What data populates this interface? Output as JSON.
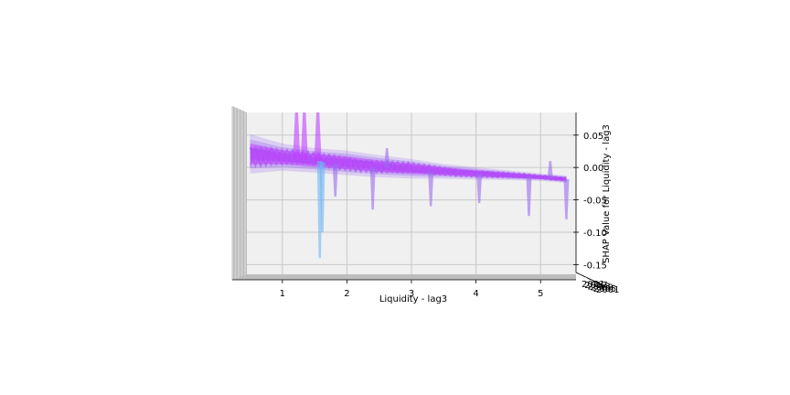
{
  "chart_data": {
    "type": "surface-3d",
    "xlabel": "Liquidity - lag3",
    "zlabel": "SHAP Value for Liquidity - lag3",
    "x_ticks": [
      "1",
      "2",
      "3",
      "4",
      "5"
    ],
    "z_ticks": [
      "0.05",
      "0.00",
      "-0.05",
      "-0.10",
      "-0.15"
    ],
    "y_tick_cluster": [
      "2021",
      "2017",
      "2013",
      "2009",
      "2005",
      "2001"
    ],
    "xlim": [
      0.45,
      5.55
    ],
    "zlim": [
      -0.165,
      0.085
    ],
    "grid": true,
    "trend": [
      {
        "x": 0.5,
        "y": 0.021
      },
      {
        "x": 1.0,
        "y": 0.016
      },
      {
        "x": 1.5,
        "y": 0.011
      },
      {
        "x": 2.0,
        "y": 0.007
      },
      {
        "x": 2.5,
        "y": 0.002
      },
      {
        "x": 3.0,
        "y": -0.002
      },
      {
        "x": 3.5,
        "y": -0.006
      },
      {
        "x": 4.0,
        "y": -0.009
      },
      {
        "x": 4.5,
        "y": -0.012
      },
      {
        "x": 5.0,
        "y": -0.015
      },
      {
        "x": 5.4,
        "y": -0.018
      }
    ],
    "band_half_width": [
      0.016,
      0.011,
      0.01,
      0.01,
      0.009,
      0.008,
      0.006,
      0.005,
      0.004,
      0.003,
      0.003
    ],
    "spikes": [
      {
        "x": 1.22,
        "y_low": 0.015,
        "y_high": 0.085
      },
      {
        "x": 1.34,
        "y_low": 0.012,
        "y_high": 0.085
      },
      {
        "x": 1.55,
        "y_low": 0.01,
        "y_high": 0.085
      },
      {
        "x": 1.58,
        "y_low": 0.01,
        "y_high": -0.14
      },
      {
        "x": 1.62,
        "y_low": 0.008,
        "y_high": -0.1
      },
      {
        "x": 1.82,
        "y_low": 0.006,
        "y_high": -0.045
      },
      {
        "x": 2.4,
        "y_low": 0.0,
        "y_high": -0.065
      },
      {
        "x": 2.62,
        "y_low": 0.0,
        "y_high": 0.03
      },
      {
        "x": 3.3,
        "y_low": -0.006,
        "y_high": -0.06
      },
      {
        "x": 4.05,
        "y_low": -0.01,
        "y_high": -0.055
      },
      {
        "x": 4.82,
        "y_low": -0.014,
        "y_high": -0.075
      },
      {
        "x": 5.15,
        "y_low": -0.016,
        "y_high": 0.01
      },
      {
        "x": 5.4,
        "y_low": -0.018,
        "y_high": -0.08
      }
    ],
    "colors": {
      "surface_high": "#c040ff",
      "surface_mid": "#9a6cf0",
      "surface_low": "#6fb6f4",
      "pane": "#f0f0f0",
      "grid": "#c8c8c8",
      "floor": "#bdbdbd"
    }
  }
}
